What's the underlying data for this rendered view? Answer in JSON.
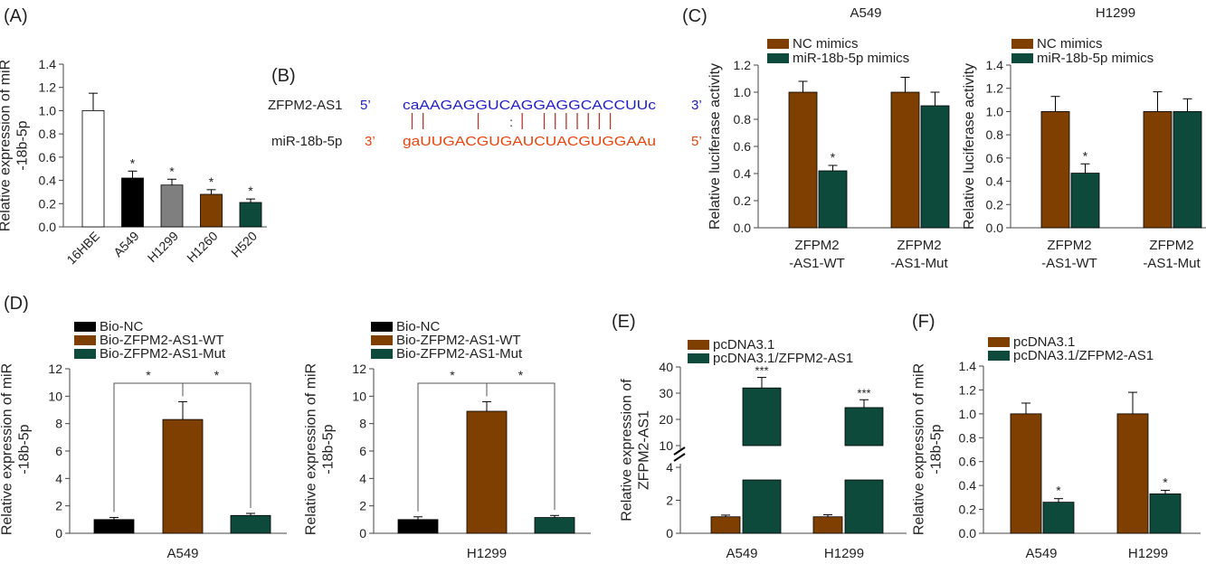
{
  "colors": {
    "white": "#ffffff",
    "black": "#000000",
    "gray": "#7f7f7f",
    "brown": "#7f3f00",
    "green": "#0e4a3b",
    "blue": "#1e1ec8",
    "red": "#e8440c",
    "axis": "#444444"
  },
  "panel_labels": [
    "(A)",
    "(B)",
    "(C)",
    "(D)",
    "(E)",
    "(F)"
  ],
  "sequence": {
    "top_name": "ZFPM2-AS1",
    "top_prime_left": "5’",
    "top_seq": "caAAGAGGUCAGGAGGCACCUUc",
    "top_prime_right": "3’",
    "bottom_name": "miR-18b-5p",
    "bottom_prime_left": "3’",
    "bottom_seq": "gaUUGACGUGAUCUACGUGGAAu",
    "bottom_prime_right": "5’",
    "pairing": "||    |  :| |||||||"
  },
  "chart_data": [
    {
      "id": "A",
      "type": "bar",
      "ylabel": [
        "Relative expression of miR",
        "-18b-5p"
      ],
      "ylim": [
        0,
        1.4
      ],
      "yticks": [
        "0.0",
        "0.2",
        "0.4",
        "0.6",
        "0.8",
        "1.0",
        "1.2",
        "1.4"
      ],
      "categories": [
        "16HBE",
        "A549",
        "H1299",
        "H1260",
        "H520"
      ],
      "values": [
        1.0,
        0.42,
        0.36,
        0.28,
        0.21
      ],
      "errors": [
        0.15,
        0.06,
        0.05,
        0.04,
        0.03
      ],
      "annotations": [
        "",
        "*",
        "*",
        "*",
        "*"
      ],
      "bar_colors": [
        "white",
        "black",
        "gray",
        "brown",
        "green"
      ]
    },
    {
      "id": "C1",
      "type": "bar",
      "title": "A549",
      "ylabel": [
        "Relative luciferase activity"
      ],
      "ylim": [
        0,
        1.2
      ],
      "yticks": [
        "0.0",
        "0.2",
        "0.4",
        "0.6",
        "0.8",
        "1.0",
        "1.2"
      ],
      "categories": [
        [
          "ZFPM2",
          "-AS1-WT"
        ],
        [
          "ZFPM2",
          "-AS1-Mut"
        ]
      ],
      "legend": [
        "NC mimics",
        "miR-18b-5p mimics"
      ],
      "series": [
        {
          "name": "NC mimics",
          "values": [
            1.0,
            1.0
          ],
          "errors": [
            0.08,
            0.11
          ],
          "annotations": [
            "",
            ""
          ]
        },
        {
          "name": "miR-18b-5p mimics",
          "values": [
            0.42,
            0.9
          ],
          "errors": [
            0.04,
            0.1
          ],
          "annotations": [
            "*",
            ""
          ]
        }
      ]
    },
    {
      "id": "C2",
      "type": "bar",
      "title": "H1299",
      "ylabel": [
        "Relative luciferase activity"
      ],
      "ylim": [
        0,
        1.4
      ],
      "yticks": [
        "0.0",
        "0.2",
        "0.4",
        "0.6",
        "0.8",
        "1.0",
        "1.2",
        "1.4"
      ],
      "categories": [
        [
          "ZFPM2",
          "-AS1-WT"
        ],
        [
          "ZFPM2",
          "-AS1-Mut"
        ]
      ],
      "legend": [
        "NC mimics",
        "miR-18b-5p mimics"
      ],
      "series": [
        {
          "name": "NC mimics",
          "values": [
            1.0,
            1.0
          ],
          "errors": [
            0.13,
            0.17
          ],
          "annotations": [
            "",
            ""
          ]
        },
        {
          "name": "miR-18b-5p mimics",
          "values": [
            0.47,
            1.0
          ],
          "errors": [
            0.08,
            0.11
          ],
          "annotations": [
            "*",
            ""
          ]
        }
      ]
    },
    {
      "id": "D1",
      "type": "bar",
      "xlabel": "A549",
      "ylabel": [
        "Relative expression of miR",
        "-18b-5p"
      ],
      "ylim": [
        0,
        12
      ],
      "yticks": [
        "0",
        "2",
        "4",
        "6",
        "8",
        "10",
        "12"
      ],
      "legend": [
        "Bio-NC",
        "Bio-ZFPM2-AS1-WT",
        "Bio-ZFPM2-AS1-Mut"
      ],
      "values": [
        1.0,
        8.3,
        1.3
      ],
      "errors": [
        0.15,
        1.3,
        0.15
      ],
      "significance": [
        "*",
        "*"
      ]
    },
    {
      "id": "D2",
      "type": "bar",
      "xlabel": "H1299",
      "ylabel": [
        "Relative expression of miR",
        "-18b-5p"
      ],
      "ylim": [
        0,
        12
      ],
      "yticks": [
        "0",
        "2",
        "4",
        "6",
        "8",
        "10",
        "12"
      ],
      "legend": [
        "Bio-NC",
        "Bio-ZFPM2-AS1-WT",
        "Bio-ZFPM2-AS1-Mut"
      ],
      "values": [
        1.0,
        8.9,
        1.15
      ],
      "errors": [
        0.2,
        0.7,
        0.15
      ],
      "significance": [
        "*",
        "*"
      ]
    },
    {
      "id": "E",
      "type": "bar",
      "ylabel": [
        "Relative expression of",
        "ZFPM2-AS1"
      ],
      "ylim_lower": [
        0,
        4
      ],
      "ylim_upper": [
        10,
        40
      ],
      "yticks_lower": [
        "0",
        "2",
        "4"
      ],
      "yticks_upper": [
        "10",
        "20",
        "30",
        "40"
      ],
      "categories": [
        "A549",
        "H1299"
      ],
      "legend": [
        "pcDNA3.1",
        "pcDNA3.1/ZFPM2-AS1"
      ],
      "series": [
        {
          "name": "pcDNA3.1",
          "values": [
            1.0,
            1.0
          ],
          "errors": [
            0.1,
            0.12
          ],
          "annotations": [
            "",
            ""
          ]
        },
        {
          "name": "pcDNA3.1/ZFPM2-AS1",
          "values": [
            32,
            24.5
          ],
          "errors": [
            4,
            3
          ],
          "annotations": [
            "***",
            "***"
          ]
        }
      ]
    },
    {
      "id": "F",
      "type": "bar",
      "ylabel": [
        "Relative expression of miR",
        "-18b-5p"
      ],
      "ylim": [
        0,
        1.4
      ],
      "yticks": [
        "0.0",
        "0.2",
        "0.4",
        "0.6",
        "0.8",
        "1.0",
        "1.2",
        "1.4"
      ],
      "categories": [
        "A549",
        "H1299"
      ],
      "legend": [
        "pcDNA3.1",
        "pcDNA3.1/ZFPM2-AS1"
      ],
      "series": [
        {
          "name": "pcDNA3.1",
          "values": [
            1.0,
            1.0
          ],
          "errors": [
            0.09,
            0.18
          ],
          "annotations": [
            "",
            ""
          ]
        },
        {
          "name": "pcDNA3.1/ZFPM2-AS1",
          "values": [
            0.26,
            0.33
          ],
          "errors": [
            0.03,
            0.03
          ],
          "annotations": [
            "*",
            "*"
          ]
        }
      ]
    }
  ]
}
